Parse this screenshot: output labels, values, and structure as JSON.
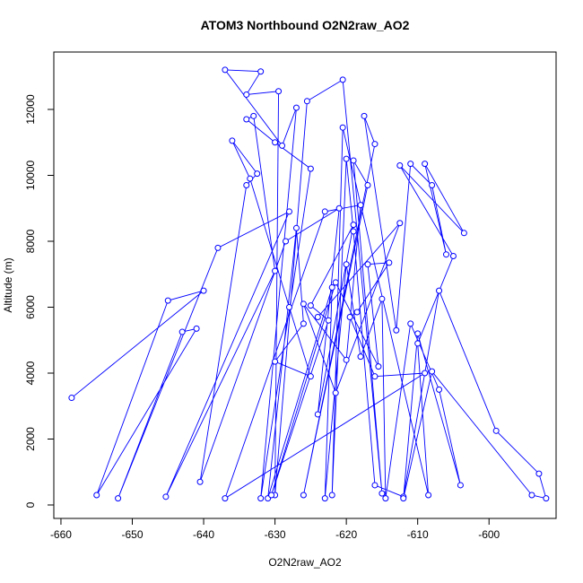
{
  "chart_data": {
    "type": "scatter-line",
    "title": "ATOM3 Northbound O2N2raw_AO2",
    "xlabel": "O2N2raw_AO2",
    "ylabel": "Altitude (m)",
    "color": "#0000ff",
    "xlim": [
      -661.0,
      -590.6
    ],
    "ylim": [
      -408,
      13741
    ],
    "xticks": [
      -660,
      -650,
      -640,
      -630,
      -620,
      -610,
      -600
    ],
    "yticks": [
      0,
      2000,
      4000,
      6000,
      8000,
      10000,
      12000
    ],
    "x": [
      -658.5,
      -640,
      -645,
      -655,
      -641,
      -643,
      -652,
      -638,
      -628,
      -645.3,
      -630,
      -633,
      -634,
      -630,
      -625,
      -632,
      -627,
      -629,
      -637,
      -632,
      -634,
      -629.5,
      -630,
      -625.5,
      -620.5,
      -615,
      -619,
      -617,
      -626,
      -616,
      -617.5,
      -613,
      -611,
      -608,
      -606,
      -609,
      -603.5,
      -612.5,
      -605,
      -610,
      -608.5,
      -620.5,
      -622,
      -620,
      -619,
      -616,
      -612,
      -607,
      -599,
      -593,
      -592,
      -594,
      -608,
      -612,
      -610,
      -604,
      -607,
      -611,
      -614.5,
      -615,
      -618,
      -620,
      -623,
      -622,
      -631,
      -627,
      -626,
      -630,
      -625,
      -628,
      -633.5,
      -636,
      -632.5,
      -634,
      -640.5,
      -628.5,
      -621,
      -624,
      -619,
      -625,
      -622.5,
      -630.5,
      -621.5,
      -615.5,
      -617,
      -614,
      -618.5,
      -619.5,
      -616,
      -609,
      -637,
      -623,
      -618,
      -620,
      -626,
      -621.5,
      -612.5,
      -624
    ],
    "values": [
      3250,
      6500,
      6200,
      300,
      5350,
      5250,
      200,
      7800,
      8900,
      250,
      7100,
      11800,
      11700,
      11000,
      10200,
      200,
      12050,
      10900,
      13200,
      13150,
      12450,
      12550,
      300,
      12250,
      12900,
      350,
      10450,
      9700,
      300,
      10950,
      11800,
      5300,
      10350,
      9700,
      7600,
      10350,
      8250,
      10300,
      7550,
      4900,
      300,
      11450,
      300,
      10500,
      8300,
      600,
      250,
      6500,
      2250,
      950,
      200,
      300,
      4050,
      200,
      5200,
      600,
      3500,
      5500,
      200,
      6250,
      4500,
      7300,
      200,
      6600,
      200,
      8400,
      5500,
      4350,
      3900,
      6000,
      9900,
      11050,
      10050,
      9700,
      700,
      8000,
      9000,
      2750,
      8500,
      6050,
      5600,
      300,
      6750,
      4200,
      7300,
      7350,
      5850,
      5700,
      3900,
      4000,
      200,
      8900,
      9100,
      4400,
      6100,
      3400,
      8550,
      5700
    ]
  }
}
